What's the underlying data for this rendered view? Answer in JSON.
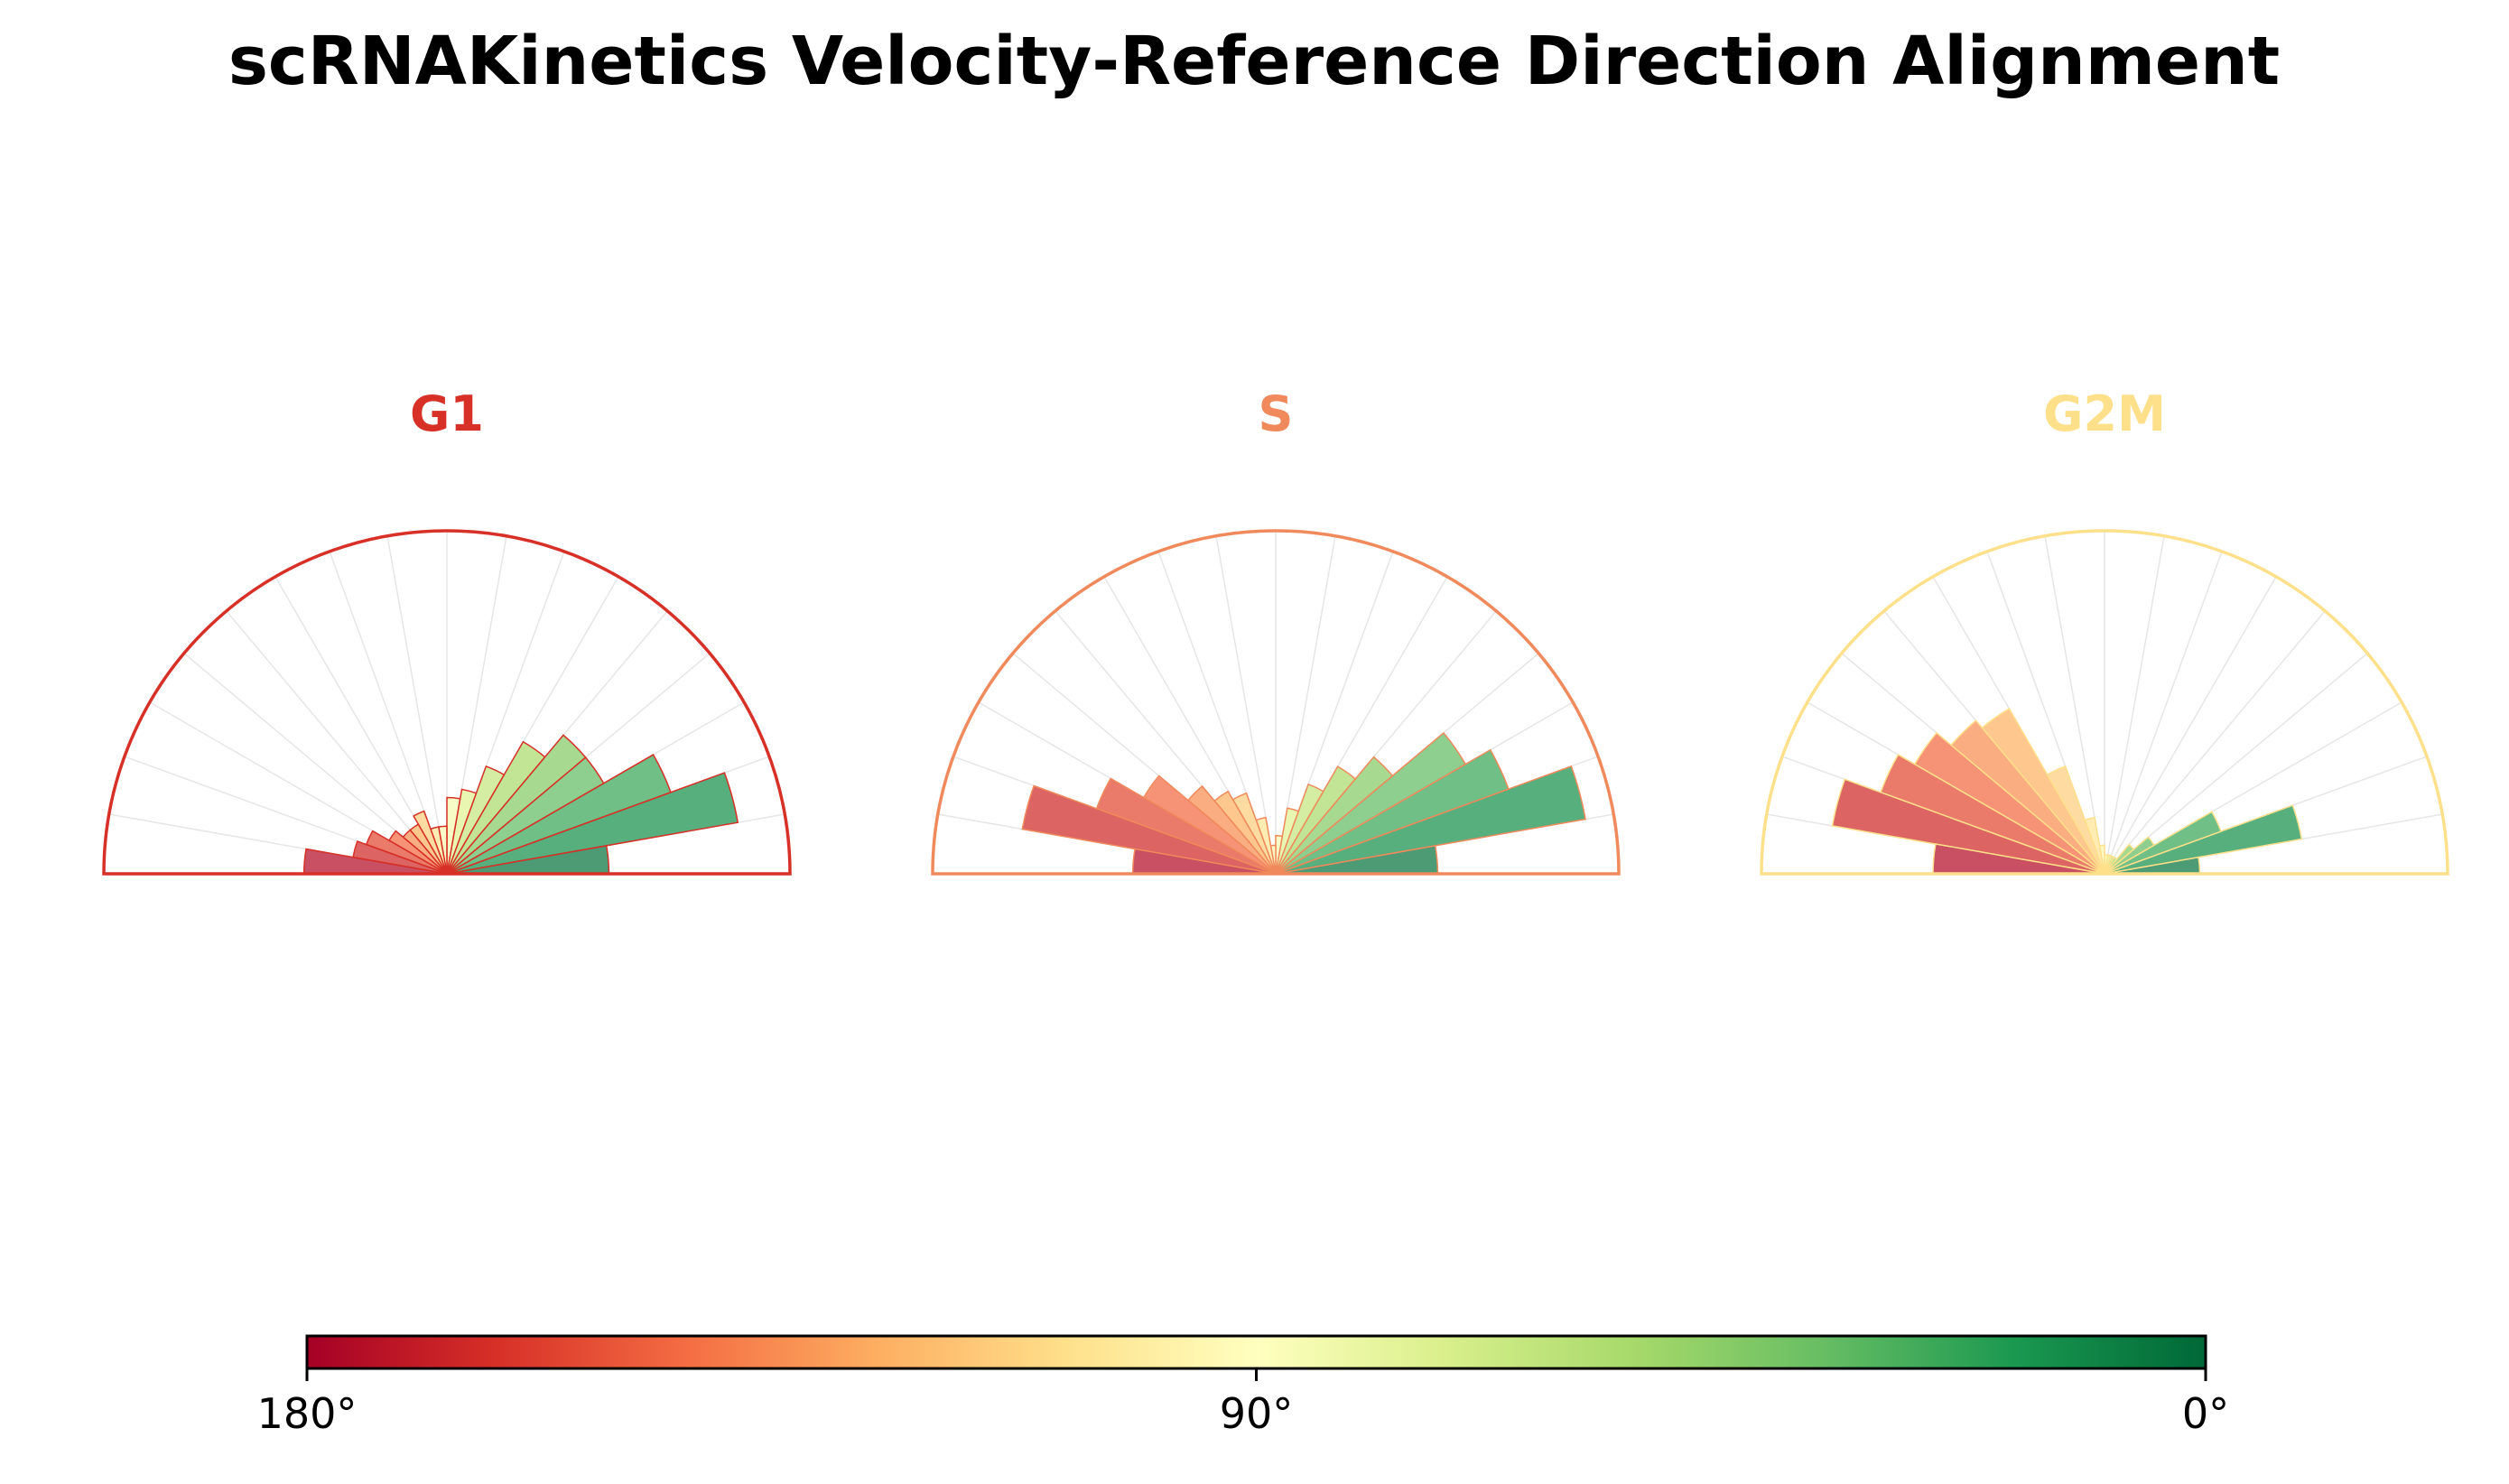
{
  "chart_data": {
    "type": "polar-bar",
    "title": "scRNAKinetics Velocity-Reference Direction Alignment",
    "angle_range_deg": [
      0,
      180
    ],
    "bin_width_deg": 10,
    "bin_centers_deg": [
      5,
      15,
      25,
      35,
      45,
      55,
      65,
      75,
      85,
      95,
      105,
      115,
      125,
      135,
      145,
      155,
      165,
      175
    ],
    "panels": [
      {
        "name": "G1",
        "color": "#d73027",
        "values": [
          0.17,
          0.31,
          0.25,
          0.19,
          0.19,
          0.16,
          0.12,
          0.09,
          0.08,
          0.05,
          0.05,
          0.07,
          0.06,
          0.06,
          0.07,
          0.09,
          0.1,
          0.15
        ]
      },
      {
        "name": "S",
        "color": "#f08a5c",
        "values": [
          0.17,
          0.33,
          0.26,
          0.23,
          0.16,
          0.13,
          0.1,
          0.07,
          0.04,
          0.03,
          0.06,
          0.09,
          0.1,
          0.12,
          0.16,
          0.2,
          0.27,
          0.15
        ]
      },
      {
        "name": "G2M",
        "color": "#fee08b",
        "values": [
          0.1,
          0.21,
          0.13,
          0.06,
          0.04,
          0.02,
          0.02,
          0.02,
          0.02,
          0.03,
          0.06,
          0.12,
          0.2,
          0.21,
          0.23,
          0.25,
          0.29,
          0.18
        ]
      }
    ],
    "colorbar": {
      "colormap": "RdYlGn",
      "range_deg": [
        180,
        0
      ],
      "tick_labels": [
        "180°",
        "90°",
        "0°"
      ],
      "stops": [
        "#a50026",
        "#d73027",
        "#f46d43",
        "#fdae61",
        "#fee08b",
        "#ffffbf",
        "#d9ef8b",
        "#a6d96a",
        "#66bd63",
        "#1a9850",
        "#006837"
      ]
    },
    "grid": true
  }
}
